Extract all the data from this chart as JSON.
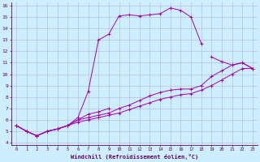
{
  "xlabel": "Windchill (Refroidissement éolien,°C)",
  "background_color": "#cceeff",
  "line_color": "#aa00aa",
  "grid_color": "#b0b8cc",
  "xlim": [
    -0.5,
    23.5
  ],
  "ylim": [
    3.8,
    16.3
  ],
  "xticks": [
    0,
    1,
    2,
    3,
    4,
    5,
    6,
    7,
    8,
    9,
    10,
    11,
    12,
    13,
    14,
    15,
    16,
    17,
    18,
    19,
    20,
    21,
    22,
    23
  ],
  "yticks": [
    4,
    5,
    6,
    7,
    8,
    9,
    10,
    11,
    12,
    13,
    14,
    15,
    16
  ],
  "lines": [
    {
      "x": [
        0,
        1,
        2,
        3,
        4,
        5,
        6,
        7,
        8,
        9,
        10,
        11,
        12,
        13,
        14,
        15,
        16,
        17,
        18,
        19,
        20,
        21,
        22,
        23
      ],
      "y": [
        5.5,
        5.0,
        4.6,
        5.0,
        5.2,
        5.5,
        6.2,
        8.5,
        13.0,
        13.5,
        15.1,
        15.2,
        15.1,
        15.2,
        15.3,
        15.8,
        15.6,
        15.0,
        12.7,
        null,
        null,
        null,
        null,
        null
      ]
    },
    {
      "x": [
        0,
        1,
        2,
        3,
        4,
        5,
        6,
        7,
        8,
        9,
        10,
        11,
        12,
        13,
        14,
        15,
        16,
        17,
        18,
        19,
        20,
        21,
        22,
        23
      ],
      "y": [
        5.5,
        5.0,
        4.6,
        5.0,
        5.2,
        5.5,
        6.0,
        6.5,
        6.7,
        7.0,
        null,
        null,
        null,
        null,
        null,
        null,
        null,
        null,
        null,
        11.5,
        11.1,
        10.8,
        11.0,
        10.5
      ]
    },
    {
      "x": [
        0,
        1,
        2,
        3,
        4,
        5,
        6,
        7,
        8,
        9,
        10,
        11,
        12,
        13,
        14,
        15,
        16,
        17,
        18,
        19,
        20,
        21,
        22,
        23
      ],
      "y": [
        5.5,
        5.0,
        4.6,
        5.0,
        5.2,
        5.5,
        6.0,
        6.2,
        6.4,
        6.6,
        7.0,
        7.3,
        7.7,
        8.1,
        8.4,
        8.6,
        8.7,
        8.7,
        9.0,
        9.8,
        10.3,
        10.8,
        11.0,
        10.5
      ]
    },
    {
      "x": [
        0,
        1,
        2,
        3,
        4,
        5,
        6,
        7,
        8,
        9,
        10,
        11,
        12,
        13,
        14,
        15,
        16,
        17,
        18,
        19,
        20,
        21,
        22,
        23
      ],
      "y": [
        5.5,
        5.0,
        4.6,
        5.0,
        5.2,
        5.5,
        5.8,
        6.0,
        6.2,
        6.4,
        6.6,
        6.9,
        7.2,
        7.5,
        7.8,
        8.0,
        8.2,
        8.3,
        8.6,
        9.0,
        9.5,
        10.0,
        10.5,
        10.5
      ]
    }
  ]
}
